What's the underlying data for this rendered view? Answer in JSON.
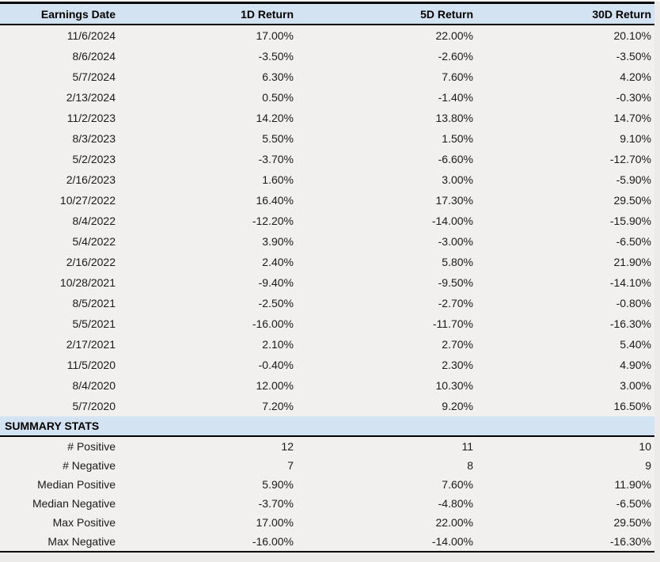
{
  "chart_data": {
    "type": "table",
    "columns": [
      "Earnings Date",
      "1D Return",
      "5D Return",
      "30D Return"
    ],
    "rows": [
      [
        "11/6/2024",
        "17.00%",
        "22.00%",
        "20.10%"
      ],
      [
        "8/6/2024",
        "-3.50%",
        "-2.60%",
        "-3.50%"
      ],
      [
        "5/7/2024",
        "6.30%",
        "7.60%",
        "4.20%"
      ],
      [
        "2/13/2024",
        "0.50%",
        "-1.40%",
        "-0.30%"
      ],
      [
        "11/2/2023",
        "14.20%",
        "13.80%",
        "14.70%"
      ],
      [
        "8/3/2023",
        "5.50%",
        "1.50%",
        "9.10%"
      ],
      [
        "5/2/2023",
        "-3.70%",
        "-6.60%",
        "-12.70%"
      ],
      [
        "2/16/2023",
        "1.60%",
        "3.00%",
        "-5.90%"
      ],
      [
        "10/27/2022",
        "16.40%",
        "17.30%",
        "29.50%"
      ],
      [
        "8/4/2022",
        "-12.20%",
        "-14.00%",
        "-15.90%"
      ],
      [
        "5/4/2022",
        "3.90%",
        "-3.00%",
        "-6.50%"
      ],
      [
        "2/16/2022",
        "2.40%",
        "5.80%",
        "21.90%"
      ],
      [
        "10/28/2021",
        "-9.40%",
        "-9.50%",
        "-14.10%"
      ],
      [
        "8/5/2021",
        "-2.50%",
        "-2.70%",
        "-0.80%"
      ],
      [
        "5/5/2021",
        "-16.00%",
        "-11.70%",
        "-16.30%"
      ],
      [
        "2/17/2021",
        "2.10%",
        "2.70%",
        "5.40%"
      ],
      [
        "11/5/2020",
        "-0.40%",
        "2.30%",
        "4.90%"
      ],
      [
        "8/4/2020",
        "12.00%",
        "10.30%",
        "3.00%"
      ],
      [
        "5/7/2020",
        "7.20%",
        "9.20%",
        "16.50%"
      ]
    ],
    "summary_title": "SUMMARY STATS",
    "summary_rows": [
      [
        "# Positive",
        "12",
        "11",
        "10"
      ],
      [
        "# Negative",
        "7",
        "8",
        "9"
      ],
      [
        "Median Positive",
        "5.90%",
        "7.60%",
        "11.90%"
      ],
      [
        "Median Negative",
        "-3.70%",
        "-4.80%",
        "-6.50%"
      ],
      [
        "Max Positive",
        "17.00%",
        "22.00%",
        "29.50%"
      ],
      [
        "Max Negative",
        "-16.00%",
        "-14.00%",
        "-16.30%"
      ]
    ],
    "layout": {
      "grid": false,
      "column_alignment": [
        "right",
        "right",
        "right",
        "right"
      ]
    }
  },
  "colors": {
    "header_bg": "#d4e3f2",
    "body_bg": "#f1f0ee",
    "page_bg": "#ecebe9",
    "border": "#000000",
    "text": "#1a1a1a"
  }
}
